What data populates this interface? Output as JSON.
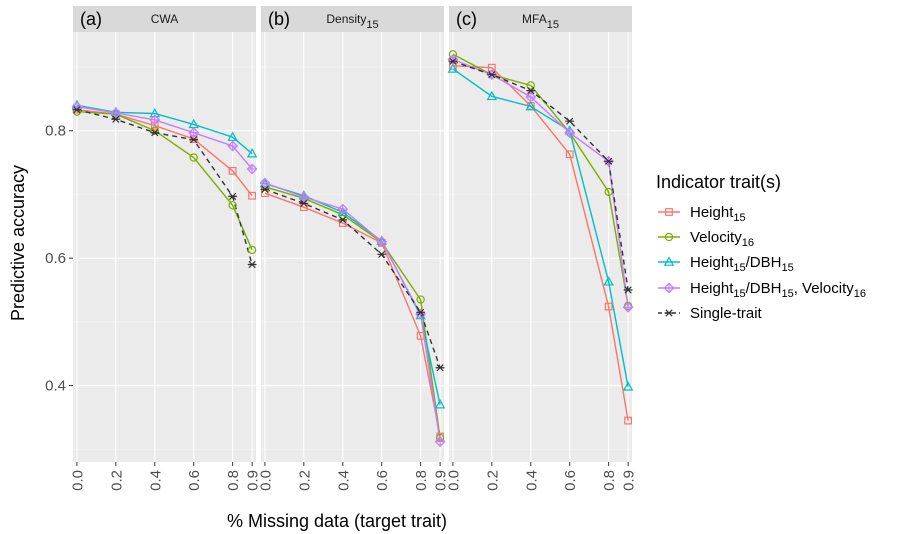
{
  "chart_data": {
    "type": "line",
    "xlabel": "% Missing data (target trait)",
    "ylabel": "Predictive accuracy",
    "ylim": [
      0.28,
      0.955
    ],
    "y_ticks": [
      0.4,
      0.6,
      0.8
    ],
    "y_tick_labels": [
      "0.4",
      "0.6",
      "0.8"
    ],
    "x": [
      0.0,
      0.2,
      0.4,
      0.6,
      0.8,
      0.9
    ],
    "x_tick_labels": [
      "0.0",
      "0.2",
      "0.4",
      "0.6",
      "0.8",
      "0.9"
    ],
    "xlim": [
      -0.02,
      0.92
    ],
    "legend": {
      "title": "Indicator trait(s)",
      "position": "right",
      "entries": [
        {
          "base": "Height",
          "sub": "15",
          "tail": "",
          "tail_sub": ""
        },
        {
          "base": "Velocity",
          "sub": "16",
          "tail": "",
          "tail_sub": ""
        },
        {
          "base": "Height",
          "sub": "15",
          "tail": "/DBH",
          "tail_sub": "15"
        },
        {
          "base": "Height",
          "sub": "15",
          "tail": "/DBH",
          "tail_sub": "15",
          "tail2": ", Velocity",
          "tail2_sub": "16"
        },
        {
          "base": "Single-trait",
          "sub": "",
          "tail": "",
          "tail_sub": ""
        }
      ]
    },
    "series_styles": [
      {
        "color": "#F8766D",
        "marker": "square",
        "dash": ""
      },
      {
        "color": "#7CAE00",
        "marker": "circle",
        "dash": ""
      },
      {
        "color": "#00BFC4",
        "marker": "triangle",
        "dash": ""
      },
      {
        "color": "#C77CFF",
        "marker": "diamond",
        "dash": ""
      },
      {
        "color": "#333333",
        "marker": "asterisk",
        "dash": "5,4"
      }
    ],
    "panels": [
      {
        "tag": "(a)",
        "title": "CWA",
        "title_sub": "",
        "series": [
          {
            "values": [
              0.833,
              0.826,
              0.808,
              0.787,
              0.737,
              0.698
            ]
          },
          {
            "values": [
              0.83,
              0.826,
              0.8,
              0.758,
              0.683,
              0.613
            ]
          },
          {
            "values": [
              0.84,
              0.829,
              0.827,
              0.81,
              0.79,
              0.764
            ]
          },
          {
            "values": [
              0.838,
              0.828,
              0.817,
              0.797,
              0.776,
              0.74
            ]
          },
          {
            "values": [
              0.833,
              0.818,
              0.797,
              0.786,
              0.697,
              0.59
            ]
          }
        ]
      },
      {
        "tag": "(b)",
        "title": "Density",
        "title_sub": "15",
        "series": [
          {
            "values": [
              0.702,
              0.68,
              0.655,
              0.624,
              0.478,
              0.32
            ]
          },
          {
            "values": [
              0.712,
              0.694,
              0.668,
              0.625,
              0.535,
              0.318
            ]
          },
          {
            "values": [
              0.717,
              0.698,
              0.672,
              0.627,
              0.51,
              0.37
            ]
          },
          {
            "values": [
              0.718,
              0.696,
              0.677,
              0.626,
              0.512,
              0.312
            ]
          },
          {
            "values": [
              0.708,
              0.686,
              0.66,
              0.606,
              0.515,
              0.428
            ]
          }
        ]
      },
      {
        "tag": "(c)",
        "title": "MFA",
        "title_sub": "15",
        "series": [
          {
            "values": [
              0.902,
              0.899,
              0.839,
              0.763,
              0.524,
              0.345
            ]
          },
          {
            "values": [
              0.92,
              0.888,
              0.871,
              0.797,
              0.704,
              0.525
            ]
          },
          {
            "values": [
              0.897,
              0.854,
              0.838,
              0.8,
              0.563,
              0.398
            ]
          },
          {
            "values": [
              0.912,
              0.888,
              0.853,
              0.797,
              0.752,
              0.523
            ]
          },
          {
            "values": [
              0.909,
              0.888,
              0.863,
              0.815,
              0.752,
              0.55
            ]
          }
        ]
      }
    ]
  }
}
